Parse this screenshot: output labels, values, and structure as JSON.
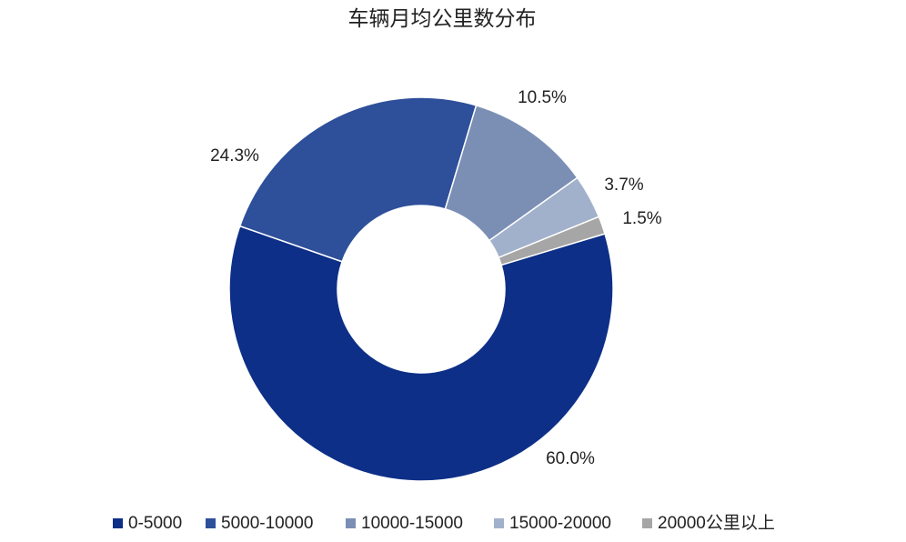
{
  "chart_data": {
    "type": "donut",
    "title": "车辆月均公里数分布",
    "categories": [
      "0-5000",
      "5000-10000",
      "10000-15000",
      "15000-20000",
      "20000公里以上"
    ],
    "values": [
      60.0,
      24.3,
      10.5,
      3.7,
      1.5
    ],
    "value_labels": [
      "60.0%",
      "24.3%",
      "10.5%",
      "3.7%",
      "1.5%"
    ],
    "colors": [
      "#0d2f87",
      "#2e4f9a",
      "#7b8fb5",
      "#a2b1cb",
      "#a6a6a6"
    ],
    "legend": "bottom"
  }
}
